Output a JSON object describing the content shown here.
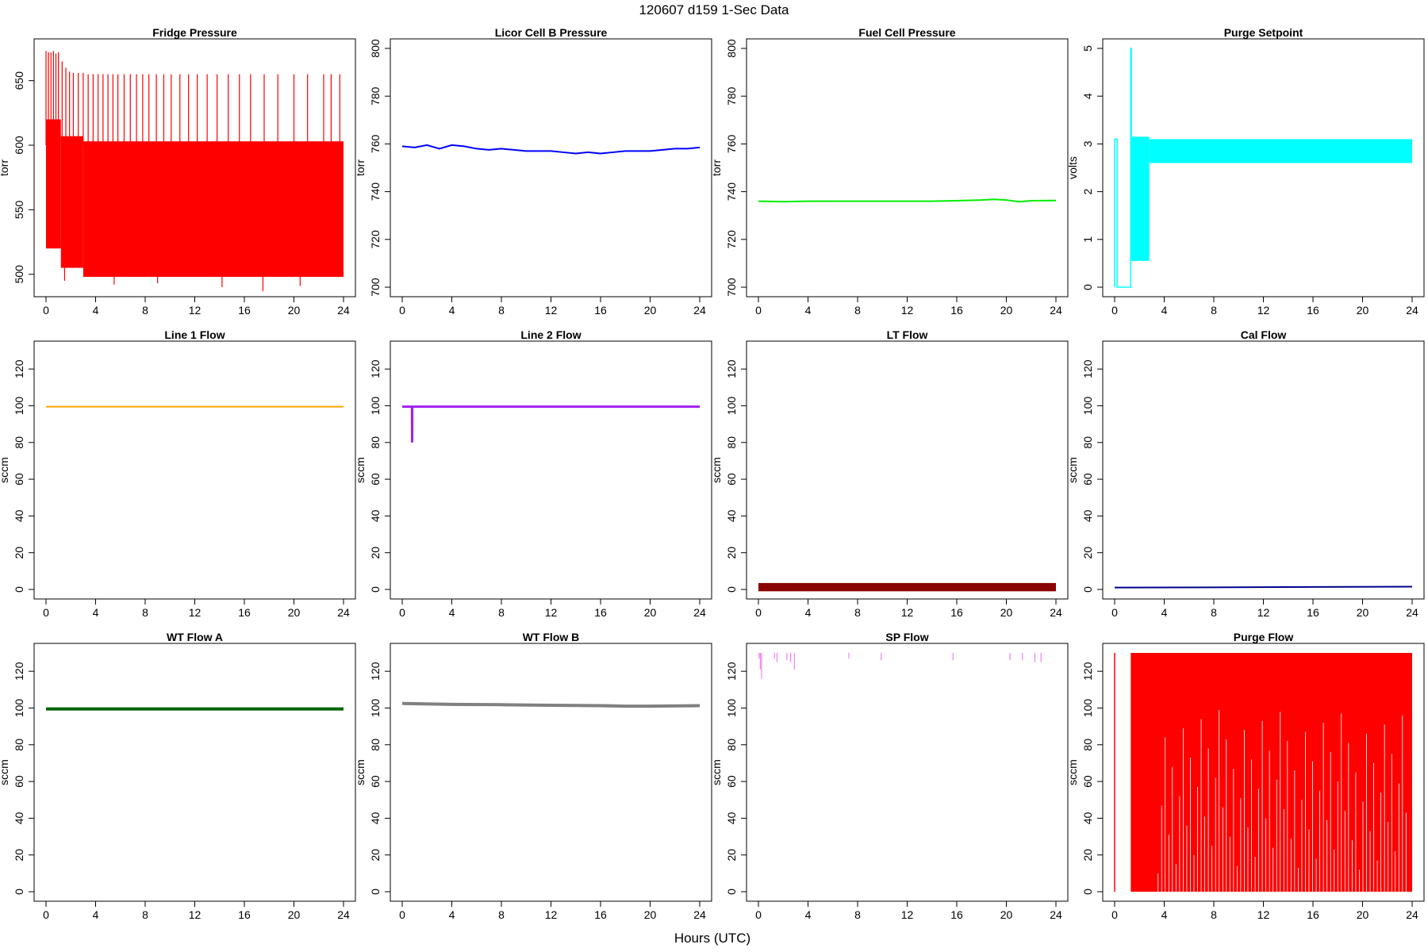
{
  "figure": {
    "title": "120607   d159   1-Sec Data",
    "xlabel": "Hours (UTC)"
  },
  "chart_data": [
    {
      "type": "line",
      "title": "Fridge Pressure",
      "ylabel": "torr",
      "xlim": [
        0,
        24
      ],
      "ylim": [
        490,
        675
      ],
      "xticks": [
        0,
        4,
        8,
        12,
        16,
        20,
        24
      ],
      "yticks": [
        500,
        550,
        600,
        650
      ],
      "color": "#ff0000",
      "style": "band",
      "bands": [
        {
          "x0": 0,
          "x1": 1.2,
          "low": 520,
          "high": 620
        },
        {
          "x0": 1.2,
          "x1": 3,
          "low": 505,
          "high": 607
        },
        {
          "x0": 3,
          "x1": 24,
          "low": 498,
          "high": 603
        }
      ],
      "spikes": {
        "x": [
          0,
          0.2,
          0.4,
          0.6,
          0.8,
          1.0,
          1.3,
          1.6,
          1.9,
          2.2,
          2.6,
          3.0,
          3.4,
          3.8,
          4.2,
          4.6,
          5.0,
          5.4,
          5.8,
          6.3,
          6.8,
          7.3,
          7.8,
          8.3,
          8.9,
          9.5,
          10.1,
          10.8,
          11.5,
          12.2,
          13.0,
          13.8,
          14.7,
          15.6,
          16.5,
          17.6,
          18.7,
          20.0,
          21.1,
          22.4,
          23.0,
          23.7
        ],
        "y": [
          673,
          672,
          672,
          673,
          671,
          672,
          665,
          660,
          657,
          656,
          656,
          656,
          655,
          655,
          655,
          655,
          655,
          655,
          655,
          655,
          655,
          655,
          655,
          655,
          655,
          655,
          655,
          655,
          655,
          655,
          655,
          655,
          655,
          655,
          655,
          655,
          655,
          655,
          655,
          655,
          655,
          655
        ]
      },
      "dips": {
        "x": [
          1.5,
          5.5,
          9.0,
          14.2,
          17.5,
          20.5
        ],
        "y": [
          495,
          492,
          493,
          490,
          487,
          491
        ]
      }
    },
    {
      "type": "line",
      "title": "Licor Cell B Pressure",
      "ylabel": "torr",
      "xlim": [
        0,
        24
      ],
      "ylim": [
        700,
        800
      ],
      "xticks": [
        0,
        4,
        8,
        12,
        16,
        20,
        24
      ],
      "yticks": [
        700,
        720,
        740,
        760,
        780,
        800
      ],
      "color": "#0000ff",
      "style": "line",
      "x": [
        0,
        1,
        2,
        3,
        4,
        5,
        6,
        7,
        8,
        9,
        10,
        11,
        12,
        13,
        14,
        15,
        16,
        17,
        18,
        19,
        20,
        21,
        22,
        23,
        24
      ],
      "y": [
        759,
        758.5,
        759.5,
        758,
        759.5,
        759,
        758,
        757.5,
        758,
        757.5,
        757,
        757,
        757,
        756.5,
        756,
        756.5,
        756,
        756.5,
        757,
        757,
        757,
        757.5,
        758,
        758,
        758.5
      ]
    },
    {
      "type": "line",
      "title": "Fuel Cell Pressure",
      "ylabel": "torr",
      "xlim": [
        0,
        24
      ],
      "ylim": [
        700,
        800
      ],
      "xticks": [
        0,
        4,
        8,
        12,
        16,
        20,
        24
      ],
      "yticks": [
        700,
        720,
        740,
        760,
        780,
        800
      ],
      "color": "#00ee00",
      "style": "line",
      "x": [
        0,
        2,
        4,
        6,
        8,
        10,
        12,
        14,
        16,
        18,
        19,
        20,
        21,
        22,
        24
      ],
      "y": [
        736,
        735.8,
        736,
        736,
        736,
        736,
        736,
        736,
        736.2,
        736.5,
        736.8,
        736.5,
        735.8,
        736.2,
        736.3
      ]
    },
    {
      "type": "line",
      "title": "Purge Setpoint",
      "ylabel": "volts",
      "xlim": [
        0,
        24
      ],
      "ylim": [
        0,
        5
      ],
      "xticks": [
        0,
        4,
        8,
        12,
        16,
        20,
        24
      ],
      "yticks": [
        0,
        1,
        2,
        3,
        4,
        5
      ],
      "color": "#00ffff",
      "style": "setpoint",
      "bands": [
        {
          "x0": 1.3,
          "x1": 2.8,
          "low": 0.55,
          "high": 3.15
        },
        {
          "x0": 2.8,
          "x1": 24,
          "low": 2.6,
          "high": 3.1
        }
      ],
      "trace": {
        "x": [
          0,
          0,
          0.1,
          0.2,
          0.2,
          1.3,
          1.3,
          1.35,
          1.35
        ],
        "y": [
          0,
          3.1,
          3.1,
          3.1,
          0,
          0,
          5,
          5,
          0.6
        ]
      }
    },
    {
      "type": "line",
      "title": "Line 1 Flow",
      "ylabel": "sccm",
      "xlim": [
        0,
        24
      ],
      "ylim": [
        0,
        130
      ],
      "xticks": [
        0,
        4,
        8,
        12,
        16,
        20,
        24
      ],
      "yticks": [
        0,
        20,
        40,
        60,
        80,
        100,
        120
      ],
      "color": "#ffa500",
      "style": "line",
      "x": [
        0,
        6,
        12,
        18,
        24
      ],
      "y": [
        99.5,
        99.5,
        99.5,
        99.5,
        99.5
      ]
    },
    {
      "type": "line",
      "title": "Line 2 Flow",
      "ylabel": "sccm",
      "xlim": [
        0,
        24
      ],
      "ylim": [
        0,
        130
      ],
      "xticks": [
        0,
        4,
        8,
        12,
        16,
        20,
        24
      ],
      "yticks": [
        0,
        20,
        40,
        60,
        80,
        100,
        120
      ],
      "color": "#a020f0",
      "style": "line",
      "x": [
        0,
        0.79,
        0.8,
        0.81,
        24
      ],
      "y": [
        99.5,
        99.5,
        80,
        99.5,
        99.5
      ],
      "lw": 3
    },
    {
      "type": "line",
      "title": "LT Flow",
      "ylabel": "sccm",
      "xlim": [
        0,
        24
      ],
      "ylim": [
        0,
        130
      ],
      "xticks": [
        0,
        4,
        8,
        12,
        16,
        20,
        24
      ],
      "yticks": [
        0,
        20,
        40,
        60,
        80,
        100,
        120
      ],
      "color": "#8b0000",
      "style": "band",
      "bands": [
        {
          "x0": 0,
          "x1": 24,
          "low": -1,
          "high": 3.5
        }
      ]
    },
    {
      "type": "line",
      "title": "Cal Flow",
      "ylabel": "sccm",
      "xlim": [
        0,
        24
      ],
      "ylim": [
        0,
        130
      ],
      "xticks": [
        0,
        4,
        8,
        12,
        16,
        20,
        24
      ],
      "yticks": [
        0,
        20,
        40,
        60,
        80,
        100,
        120
      ],
      "color": "#00008b",
      "style": "line",
      "x": [
        0,
        24
      ],
      "y": [
        1,
        1.5
      ]
    },
    {
      "type": "line",
      "title": "WT Flow A",
      "ylabel": "sccm",
      "xlim": [
        0,
        24
      ],
      "ylim": [
        0,
        130
      ],
      "xticks": [
        0,
        4,
        8,
        12,
        16,
        20,
        24
      ],
      "yticks": [
        0,
        20,
        40,
        60,
        80,
        100,
        120
      ],
      "color": "#006400",
      "style": "line",
      "x": [
        0,
        24
      ],
      "y": [
        99.5,
        99.5
      ],
      "lw": 4
    },
    {
      "type": "line",
      "title": "WT Flow B",
      "ylabel": "sccm",
      "xlim": [
        0,
        24
      ],
      "ylim": [
        0,
        130
      ],
      "xticks": [
        0,
        4,
        8,
        12,
        16,
        20,
        24
      ],
      "yticks": [
        0,
        20,
        40,
        60,
        80,
        100,
        120
      ],
      "color": "#808080",
      "style": "line",
      "x": [
        0,
        4,
        8,
        12,
        16,
        18,
        20,
        24
      ],
      "y": [
        102.5,
        102,
        101.8,
        101.5,
        101.3,
        101,
        101,
        101.3
      ],
      "lw": 4
    },
    {
      "type": "line",
      "title": "SP Flow",
      "ylabel": "sccm",
      "xlim": [
        0,
        24
      ],
      "ylim": [
        0,
        130
      ],
      "xticks": [
        0,
        4,
        8,
        12,
        16,
        20,
        24
      ],
      "yticks": [
        0,
        20,
        40,
        60,
        80,
        100,
        120
      ],
      "color": "#ee82ee",
      "style": "sp",
      "spikes": {
        "x": [
          0.05,
          0.15,
          0.25,
          1.3,
          1.5,
          2.3,
          2.6,
          2.9,
          7.3,
          9.9,
          15.7,
          20.3,
          21.3,
          22.3,
          22.8
        ],
        "y": [
          127,
          121,
          116,
          127,
          125,
          126,
          125,
          121,
          127,
          126,
          126,
          126,
          126,
          125,
          125
        ]
      }
    },
    {
      "type": "line",
      "title": "Purge Flow",
      "ylabel": "sccm",
      "xlim": [
        0,
        24
      ],
      "ylim": [
        0,
        130
      ],
      "xticks": [
        0,
        4,
        8,
        12,
        16,
        20,
        24
      ],
      "yticks": [
        0,
        20,
        40,
        60,
        80,
        100,
        120
      ],
      "color": "#ff0000",
      "style": "purge",
      "bands": [
        {
          "x0": 1.3,
          "x1": 24,
          "low": 0,
          "high": 130
        }
      ],
      "trace": {
        "x": [
          0,
          0,
          0
        ],
        "y": [
          0,
          130,
          0
        ]
      }
    }
  ]
}
